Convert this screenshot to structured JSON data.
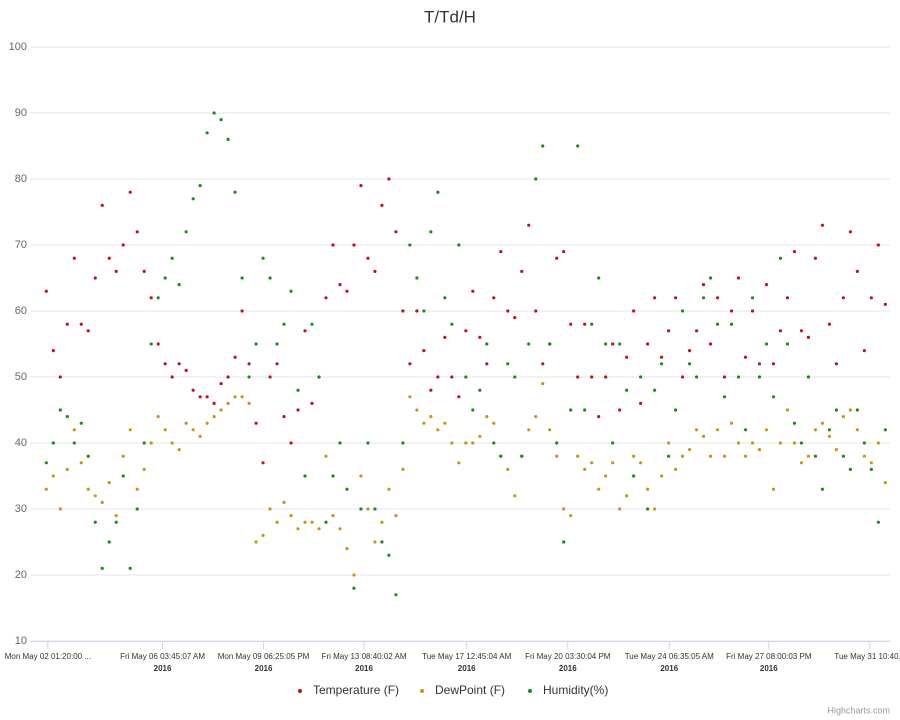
{
  "chart_data": {
    "type": "scatter",
    "title": "T/Td/H",
    "credit": "Highcharts.com",
    "grid": true,
    "legend": "bottom",
    "ylim": [
      10,
      100
    ],
    "yticks": [
      10,
      20,
      30,
      40,
      50,
      60,
      70,
      80,
      90,
      100
    ],
    "xlim": [
      "2016-05-01 10:00",
      "2016-06-01 04:00"
    ],
    "xticks": [
      {
        "value": "2016-05-02 01:20:00",
        "label": "Mon May 02 01:20:00 ..."
      },
      {
        "value": "2016-05-06 03:45:07",
        "label": "Fri May 06 03:45:07 AM",
        "year": "2016"
      },
      {
        "value": "2016-05-09 18:25:05",
        "label": "Mon May 09 06:25:05 PM",
        "year": "2016"
      },
      {
        "value": "2016-05-13 08:40:02",
        "label": "Fri May 13 08:40:02 AM",
        "year": "2016"
      },
      {
        "value": "2016-05-17 00:45:04",
        "label": "Tue May 17 12:45:04 AM",
        "year": "2016"
      },
      {
        "value": "2016-05-20 15:30:04",
        "label": "Fri May 20 03:30:04 PM",
        "year": "2016"
      },
      {
        "value": "2016-05-24 06:35:05",
        "label": "Tue May 24 06:35:05 AM",
        "year": "2016"
      },
      {
        "value": "2016-05-27 20:00:03",
        "label": "Fri May 27 08:00:03 PM",
        "year": "2016"
      },
      {
        "value": "2016-05-31 10:40:00",
        "label": "Tue May 31 10:40..."
      }
    ],
    "x": [
      "2016-05-02 00:00",
      "2016-05-02 06:00",
      "2016-05-02 12:00",
      "2016-05-02 18:00",
      "2016-05-03 00:00",
      "2016-05-03 06:00",
      "2016-05-03 12:00",
      "2016-05-03 18:00",
      "2016-05-04 00:00",
      "2016-05-04 06:00",
      "2016-05-04 12:00",
      "2016-05-04 18:00",
      "2016-05-05 00:00",
      "2016-05-05 06:00",
      "2016-05-05 12:00",
      "2016-05-05 18:00",
      "2016-05-06 00:00",
      "2016-05-06 06:00",
      "2016-05-06 12:00",
      "2016-05-06 18:00",
      "2016-05-07 00:00",
      "2016-05-07 06:00",
      "2016-05-07 12:00",
      "2016-05-07 18:00",
      "2016-05-08 00:00",
      "2016-05-08 06:00",
      "2016-05-08 12:00",
      "2016-05-08 18:00",
      "2016-05-09 00:00",
      "2016-05-09 06:00",
      "2016-05-09 12:00",
      "2016-05-09 18:00",
      "2016-05-10 00:00",
      "2016-05-10 06:00",
      "2016-05-10 12:00",
      "2016-05-10 18:00",
      "2016-05-11 00:00",
      "2016-05-11 06:00",
      "2016-05-11 12:00",
      "2016-05-11 18:00",
      "2016-05-12 00:00",
      "2016-05-12 06:00",
      "2016-05-12 12:00",
      "2016-05-12 18:00",
      "2016-05-13 00:00",
      "2016-05-13 06:00",
      "2016-05-13 12:00",
      "2016-05-13 18:00",
      "2016-05-14 00:00",
      "2016-05-14 06:00",
      "2016-05-14 12:00",
      "2016-05-14 18:00",
      "2016-05-15 00:00",
      "2016-05-15 06:00",
      "2016-05-15 12:00",
      "2016-05-15 18:00",
      "2016-05-16 00:00",
      "2016-05-16 06:00",
      "2016-05-16 12:00",
      "2016-05-16 18:00",
      "2016-05-17 00:00",
      "2016-05-17 06:00",
      "2016-05-17 12:00",
      "2016-05-17 18:00",
      "2016-05-18 00:00",
      "2016-05-18 06:00",
      "2016-05-18 12:00",
      "2016-05-18 18:00",
      "2016-05-19 00:00",
      "2016-05-19 06:00",
      "2016-05-19 12:00",
      "2016-05-19 18:00",
      "2016-05-20 00:00",
      "2016-05-20 06:00",
      "2016-05-20 12:00",
      "2016-05-20 18:00",
      "2016-05-21 00:00",
      "2016-05-21 06:00",
      "2016-05-21 12:00",
      "2016-05-21 18:00",
      "2016-05-22 00:00",
      "2016-05-22 06:00",
      "2016-05-22 12:00",
      "2016-05-22 18:00",
      "2016-05-23 00:00",
      "2016-05-23 06:00",
      "2016-05-23 12:00",
      "2016-05-23 18:00",
      "2016-05-24 00:00",
      "2016-05-24 06:00",
      "2016-05-24 12:00",
      "2016-05-24 18:00",
      "2016-05-25 00:00",
      "2016-05-25 06:00",
      "2016-05-25 12:00",
      "2016-05-25 18:00",
      "2016-05-26 00:00",
      "2016-05-26 06:00",
      "2016-05-26 12:00",
      "2016-05-26 18:00",
      "2016-05-27 00:00",
      "2016-05-27 06:00",
      "2016-05-27 12:00",
      "2016-05-27 18:00",
      "2016-05-28 00:00",
      "2016-05-28 06:00",
      "2016-05-28 12:00",
      "2016-05-28 18:00",
      "2016-05-29 00:00",
      "2016-05-29 06:00",
      "2016-05-29 12:00",
      "2016-05-29 18:00",
      "2016-05-30 00:00",
      "2016-05-30 06:00",
      "2016-05-30 12:00",
      "2016-05-30 18:00",
      "2016-05-31 00:00",
      "2016-05-31 06:00",
      "2016-05-31 12:00",
      "2016-05-31 18:00",
      "2016-06-01 00:00"
    ],
    "series": [
      {
        "name": "Temperature (F)",
        "color": "#c0141a",
        "values": [
          63,
          54,
          50,
          58,
          68,
          58,
          57,
          65,
          76,
          68,
          66,
          70,
          78,
          72,
          66,
          62,
          55,
          52,
          50,
          52,
          51,
          48,
          47,
          47,
          46,
          49,
          50,
          53,
          60,
          52,
          43,
          37,
          50,
          52,
          44,
          40,
          45,
          57,
          46,
          50,
          62,
          70,
          64,
          63,
          70,
          79,
          68,
          66,
          76,
          80,
          72,
          60,
          52,
          60,
          54,
          48,
          50,
          56,
          50,
          47,
          57,
          63,
          56,
          52,
          62,
          69,
          60,
          59,
          66,
          73,
          60,
          52,
          55,
          68,
          69,
          58,
          50,
          58,
          50,
          44,
          50,
          55,
          45,
          53,
          60,
          46,
          55,
          62,
          53,
          57,
          62,
          50,
          54,
          57,
          64,
          55,
          62,
          50,
          60,
          65,
          53,
          60,
          52,
          64,
          52,
          57,
          62,
          69,
          57,
          56,
          68,
          73,
          58,
          52,
          62,
          72,
          66,
          54,
          62,
          70,
          61
        ]
      },
      {
        "name": "DewPoint (F)",
        "color": "#c8960f",
        "values": [
          33,
          35,
          30,
          36,
          42,
          37,
          33,
          32,
          31,
          34,
          29,
          38,
          42,
          33,
          36,
          40,
          44,
          42,
          40,
          39,
          43,
          42,
          41,
          43,
          44,
          45,
          46,
          47,
          47,
          46,
          25,
          26,
          30,
          28,
          31,
          29,
          27,
          28,
          28,
          27,
          38,
          29,
          27,
          24,
          20,
          35,
          30,
          25,
          28,
          33,
          29,
          36,
          47,
          45,
          43,
          44,
          42,
          43,
          40,
          37,
          40,
          40,
          41,
          44,
          43,
          38,
          36,
          32,
          38,
          42,
          44,
          49,
          42,
          38,
          30,
          29,
          38,
          36,
          37,
          33,
          35,
          37,
          30,
          32,
          38,
          37,
          33,
          30,
          35,
          40,
          36,
          38,
          39,
          42,
          41,
          38,
          42,
          38,
          43,
          40,
          38,
          40,
          39,
          42,
          33,
          40,
          45,
          40,
          37,
          38,
          42,
          43,
          41,
          39,
          44,
          45,
          42,
          38,
          37,
          40,
          34
        ]
      },
      {
        "name": "Humidity(%)",
        "color": "#1a8c1a",
        "values": [
          37,
          40,
          45,
          44,
          40,
          43,
          38,
          28,
          21,
          25,
          28,
          35,
          21,
          30,
          40,
          55,
          62,
          65,
          68,
          64,
          72,
          77,
          79,
          87,
          90,
          89,
          86,
          78,
          65,
          50,
          55,
          68,
          65,
          55,
          58,
          63,
          48,
          35,
          58,
          50,
          28,
          35,
          40,
          33,
          18,
          30,
          40,
          30,
          25,
          23,
          17,
          40,
          70,
          65,
          60,
          72,
          78,
          62,
          58,
          70,
          50,
          45,
          48,
          55,
          40,
          38,
          52,
          50,
          38,
          55,
          80,
          85,
          55,
          40,
          25,
          45,
          85,
          45,
          58,
          65,
          55,
          40,
          55,
          48,
          35,
          50,
          30,
          48,
          52,
          38,
          45,
          60,
          52,
          50,
          62,
          65,
          58,
          47,
          58,
          50,
          42,
          62,
          50,
          55,
          47,
          68,
          55,
          43,
          40,
          50,
          38,
          33,
          42,
          45,
          38,
          36,
          45,
          40,
          36,
          28,
          42
        ]
      }
    ]
  }
}
